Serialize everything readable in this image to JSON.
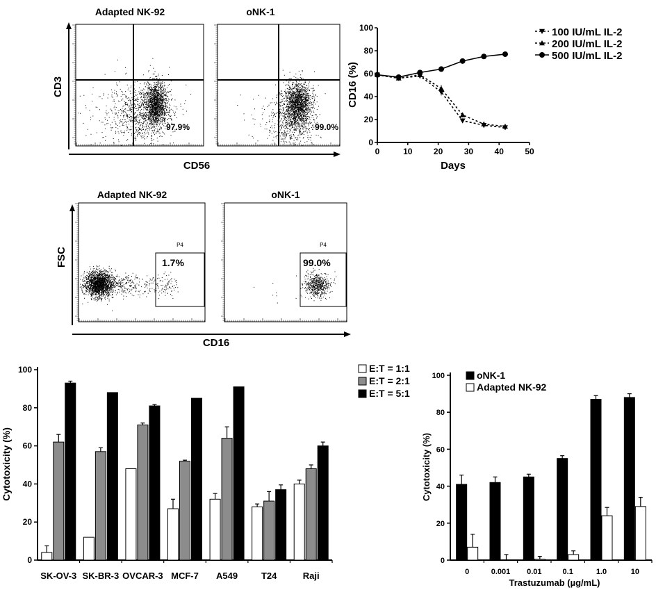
{
  "chart_data": [
    {
      "type": "scatter",
      "panel": "flow-cd3-cd56",
      "xlabel": "CD56",
      "ylabel": "CD3",
      "plots": [
        {
          "title": "Adapted NK-92",
          "gate_percent": "97.9%"
        },
        {
          "title": "oNK-1",
          "gate_percent": "99.0%"
        }
      ]
    },
    {
      "type": "line",
      "panel": "cd16-time-course",
      "xlabel": "Days",
      "ylabel": "CD16 (%)",
      "xlim": [
        0,
        50
      ],
      "ylim": [
        0,
        100
      ],
      "xticks": [
        "0",
        "10",
        "20",
        "30",
        "40",
        "50"
      ],
      "yticks": [
        "0",
        "20",
        "40",
        "60",
        "80",
        "100"
      ],
      "legend": "top-right",
      "x": [
        0,
        7,
        14,
        21,
        28,
        35,
        42
      ],
      "series": [
        {
          "name": "100 IU/mL IL-2",
          "marker": "triangle-down",
          "dash": true,
          "values": [
            59,
            56,
            58,
            44,
            19,
            15,
            13
          ],
          "errors": [
            2,
            2,
            2,
            3,
            2,
            2,
            2
          ]
        },
        {
          "name": "200 IU/mL IL-2",
          "marker": "triangle-up",
          "dash": true,
          "values": [
            59,
            56,
            59,
            47,
            24,
            16,
            14
          ],
          "errors": [
            2,
            2,
            2,
            3,
            2,
            2,
            2
          ]
        },
        {
          "name": "500 IU/mL IL-2",
          "marker": "circle",
          "dash": false,
          "values": [
            59,
            57,
            61,
            64,
            71,
            75,
            77
          ],
          "errors": [
            1,
            1,
            1,
            1,
            1,
            1,
            1
          ]
        }
      ]
    },
    {
      "type": "scatter",
      "panel": "flow-fsc-cd16",
      "xlabel": "CD16",
      "ylabel": "FSC",
      "plots": [
        {
          "title": "Adapted NK-92",
          "gate_name": "P4",
          "gate_percent": "1.7%"
        },
        {
          "title": "oNK-1",
          "gate_name": "P4",
          "gate_percent": "99.0%"
        }
      ]
    },
    {
      "type": "bar",
      "panel": "cytotoxicity-cell-lines",
      "ylabel": "Cytotoxicity (%)",
      "ylim": [
        0,
        100
      ],
      "yticks": [
        "0",
        "20",
        "40",
        "60",
        "80",
        "100"
      ],
      "legend": "top-right",
      "categories": [
        "SK-OV-3",
        "SK-BR-3",
        "OVCAR-3",
        "MCF-7",
        "A549",
        "T24",
        "Raji"
      ],
      "series": [
        {
          "name": "E:T = 1:1",
          "color": "#ffffff",
          "values": [
            4,
            12,
            48,
            27,
            32,
            28,
            40
          ],
          "errors": [
            3.5,
            0,
            0,
            5,
            3,
            1.5,
            2
          ]
        },
        {
          "name": "E:T = 2:1",
          "color": "#8c8c8c",
          "values": [
            62,
            57,
            71,
            52,
            64,
            31,
            48
          ],
          "errors": [
            4,
            2,
            1,
            0.5,
            6,
            5,
            2
          ]
        },
        {
          "name": "E:T = 5:1",
          "color": "#000000",
          "values": [
            93,
            88,
            81,
            85,
            91,
            37,
            60
          ],
          "errors": [
            1,
            0,
            0.7,
            0,
            0,
            2.5,
            2
          ]
        }
      ]
    },
    {
      "type": "bar",
      "panel": "cytotoxicity-trastuzumab",
      "ylabel": "Cytotoxicity (%)",
      "xlabel": "Trastuzumab (µg/mL)",
      "ylim": [
        0,
        100
      ],
      "yticks": [
        "0",
        "20",
        "40",
        "60",
        "80",
        "100"
      ],
      "legend": "top-left",
      "categories": [
        "0",
        "0.001",
        "0.01",
        "0.1",
        "1.0",
        "10"
      ],
      "series": [
        {
          "name": "oNK-1",
          "color": "#000000",
          "values": [
            41,
            42,
            45,
            55,
            87,
            88
          ],
          "errors": [
            5,
            3,
            1.5,
            1.5,
            2,
            2
          ]
        },
        {
          "name": "Adapted NK-92",
          "color": "#ffffff",
          "values": [
            7,
            0,
            0.5,
            3,
            24,
            29
          ],
          "errors": [
            7,
            3,
            1.5,
            2,
            4.5,
            5
          ]
        }
      ]
    }
  ]
}
